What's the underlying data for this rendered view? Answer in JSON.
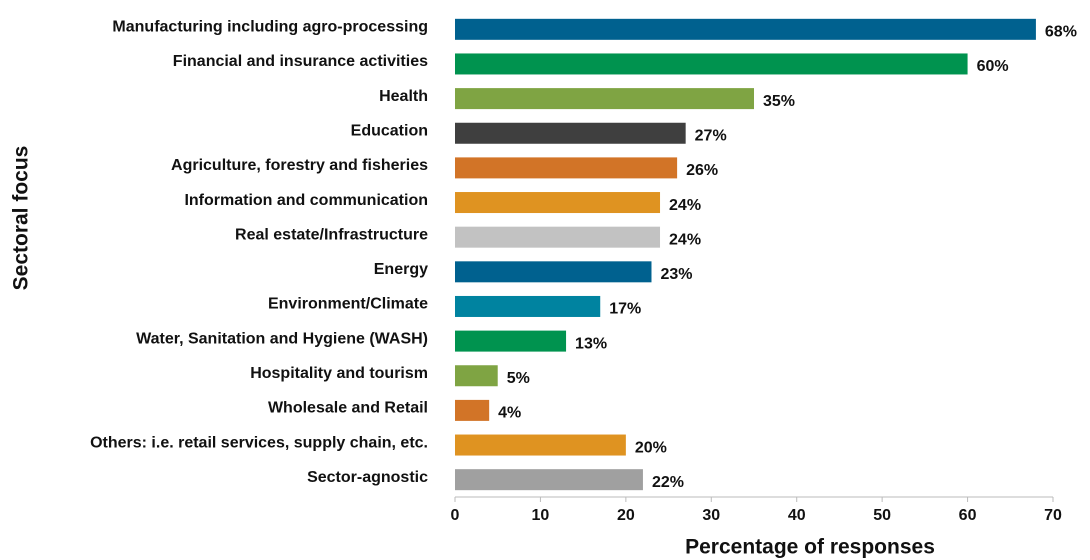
{
  "chart_data": {
    "type": "hbar",
    "xlabel": "Percentage of responses",
    "ylabel": "Sectoral focus",
    "categories": [
      "Manufacturing including agro-processing",
      "Financial and insurance activities",
      "Health",
      "Education",
      "Agriculture, forestry and fisheries",
      "Information and communication",
      "Real estate/Infrastructure",
      "Energy",
      "Environment/Climate",
      "Water, Sanitation and Hygiene (WASH)",
      "Hospitality and tourism",
      "Wholesale and Retail",
      "Others: i.e. retail services, supply chain, etc.",
      "Sector-agnostic"
    ],
    "values": [
      68,
      60,
      35,
      27,
      26,
      24,
      24,
      23,
      17,
      13,
      5,
      4,
      20,
      22
    ],
    "value_labels": [
      "68%",
      "60%",
      "35%",
      "27%",
      "26%",
      "24%",
      "24%",
      "23%",
      "17%",
      "13%",
      "5%",
      "4%",
      "20%",
      "22%"
    ],
    "colors": [
      "#00618f",
      "#00934f",
      "#7fa443",
      "#3f3f3f",
      "#d27427",
      "#df9321",
      "#c2c2c2",
      "#00618f",
      "#0083a0",
      "#00934f",
      "#7fa443",
      "#d27427",
      "#df9321",
      "#a0a0a0"
    ],
    "xlim": [
      0,
      70
    ],
    "xticks": [
      0,
      10,
      20,
      30,
      40,
      50,
      60,
      70
    ],
    "grid": false
  }
}
